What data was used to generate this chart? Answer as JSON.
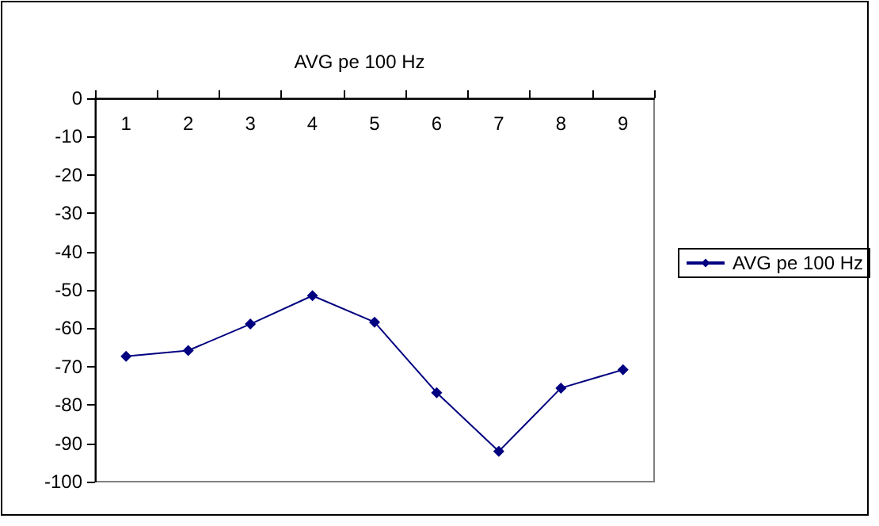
{
  "chart_data": {
    "type": "line",
    "title": "AVG pe 100 Hz",
    "categories": [
      "1",
      "2",
      "3",
      "4",
      "5",
      "6",
      "7",
      "8",
      "9"
    ],
    "series": [
      {
        "name": "AVG pe 100 Hz",
        "color": "#000080",
        "values": [
          -67.3,
          -65.8,
          -58.9,
          -51.5,
          -58.4,
          -76.8,
          -92.1,
          -75.6,
          -70.8
        ]
      }
    ],
    "ylim": [
      -100,
      0
    ],
    "yticks": [
      -100,
      -90,
      -80,
      -70,
      -60,
      -50,
      -40,
      -30,
      -20,
      -10,
      0
    ],
    "grid": false,
    "legend": "right",
    "marker": "diamond",
    "line_style": "solid"
  }
}
